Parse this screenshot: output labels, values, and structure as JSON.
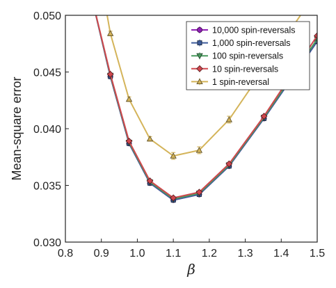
{
  "chart_data": {
    "type": "line",
    "xlabel": "β",
    "ylabel": "Mean-square error",
    "xlim": [
      0.8,
      1.5
    ],
    "ylim": [
      0.03,
      0.05
    ],
    "grid": false,
    "legend_position": "top-right",
    "x_ticks": [
      "0.8",
      "0.9",
      "1.0",
      "1.1",
      "1.2",
      "1.3",
      "1.4",
      "1.5"
    ],
    "y_ticks": [
      "0.030",
      "0.035",
      "0.040",
      "0.045",
      "0.050"
    ],
    "series": [
      {
        "name": "10,000 spin-reversals",
        "color": "#8e1fb3",
        "marker": "circle",
        "x": [
          0.87,
          0.925,
          0.977,
          1.035,
          1.1,
          1.172,
          1.255,
          1.352,
          1.5
        ],
        "y": [
          0.052,
          0.0446,
          0.0387,
          0.0352,
          0.0337,
          0.0342,
          0.0367,
          0.0409,
          0.0477
        ]
      },
      {
        "name": "1,000 spin-reversals",
        "color": "#3e5c9a",
        "marker": "square",
        "x": [
          0.87,
          0.925,
          0.977,
          1.035,
          1.1,
          1.172,
          1.255,
          1.352,
          1.5
        ],
        "y": [
          0.052,
          0.0446,
          0.0387,
          0.0352,
          0.0337,
          0.0342,
          0.0367,
          0.0409,
          0.0477
        ]
      },
      {
        "name": "100 spin-reversals",
        "color": "#4a9a5e",
        "marker": "triangle-down",
        "x": [
          0.87,
          0.925,
          0.977,
          1.035,
          1.1,
          1.172,
          1.255,
          1.352,
          1.5
        ],
        "y": [
          0.052,
          0.0447,
          0.0388,
          0.0353,
          0.0338,
          0.0343,
          0.0368,
          0.041,
          0.0479
        ]
      },
      {
        "name": "10 spin-reversals",
        "color": "#d0474e",
        "marker": "diamond",
        "x": [
          0.87,
          0.925,
          0.977,
          1.035,
          1.1,
          1.172,
          1.255,
          1.352,
          1.5
        ],
        "y": [
          0.052,
          0.0448,
          0.0389,
          0.0354,
          0.0339,
          0.0344,
          0.0369,
          0.0411,
          0.0482
        ]
      },
      {
        "name": "1 spin-reversal",
        "color": "#d4b45a",
        "marker": "triangle-up",
        "x": [
          0.905,
          0.925,
          0.977,
          1.035,
          1.1,
          1.172,
          1.255,
          1.46
        ],
        "y": [
          0.052,
          0.0484,
          0.0426,
          0.0391,
          0.0376,
          0.0381,
          0.0408,
          0.0503
        ],
        "errors": [
          0.0,
          0.0002,
          0.0002,
          0.0002,
          0.0003,
          0.0003,
          0.0003,
          0.0
        ]
      }
    ]
  }
}
